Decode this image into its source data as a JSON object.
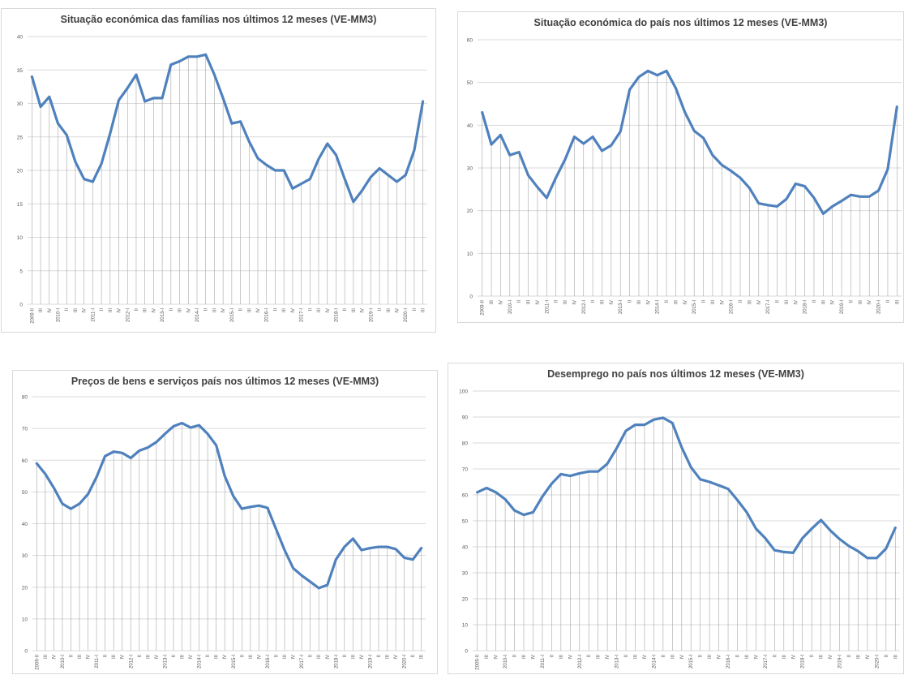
{
  "colors": {
    "line": "#4f81bd",
    "gridline": "#d9d9d9",
    "dropline": "#a6a6a6",
    "text": "#595959"
  },
  "chart_data": [
    {
      "type": "line",
      "title": "Situação económica das famílias nos últimos 12 meses (VE-MM3)",
      "xlabel": "",
      "ylabel": "",
      "ylim": [
        0,
        40
      ],
      "yticks": [
        0,
        5,
        10,
        15,
        20,
        25,
        30,
        35,
        40
      ],
      "grid": true,
      "categories": [
        "2009-II",
        "III",
        "IV",
        "2010-I",
        "II",
        "III",
        "IV",
        "2011-I",
        "II",
        "III",
        "IV",
        "2012-I",
        "II",
        "III",
        "IV",
        "2013-I",
        "II",
        "III",
        "IV",
        "2014-I",
        "II",
        "III",
        "IV",
        "2015-I",
        "II",
        "III",
        "IV",
        "2016-I",
        "II",
        "III",
        "IV",
        "2017-I",
        "II",
        "III",
        "IV",
        "2018-I",
        "II",
        "III",
        "IV",
        "2019-I",
        "II",
        "III",
        "IV",
        "2020-I",
        "II",
        "III"
      ],
      "values": [
        34,
        29.5,
        31,
        27,
        25.3,
        21.3,
        18.7,
        18.3,
        21,
        25.5,
        30.5,
        32.3,
        34.3,
        30.3,
        30.8,
        30.8,
        35.8,
        36.3,
        37,
        37,
        37.3,
        34.3,
        30.8,
        27,
        27.3,
        24.3,
        21.8,
        20.8,
        20,
        20,
        17.3,
        18,
        18.7,
        21.7,
        24,
        22.3,
        18.7,
        15.3,
        17,
        19,
        20.3,
        19.3,
        18.3,
        19.3,
        23,
        30.3
      ]
    },
    {
      "type": "line",
      "title": "Situação económica do país nos últimos 12 meses (VE-MM3)",
      "xlabel": "",
      "ylabel": "",
      "ylim": [
        0,
        60
      ],
      "yticks": [
        0,
        10,
        20,
        30,
        40,
        50,
        60
      ],
      "grid": true,
      "categories": [
        "2009-II",
        "III",
        "IV",
        "2010-I",
        "II",
        "III",
        "IV",
        "2011-I",
        "II",
        "III",
        "IV",
        "2012-I",
        "II",
        "III",
        "IV",
        "2013-I",
        "II",
        "III",
        "IV",
        "2014-I",
        "II",
        "III",
        "IV",
        "2015-I",
        "II",
        "III",
        "IV",
        "2016-I",
        "II",
        "III",
        "IV",
        "2017-I",
        "II",
        "III",
        "IV",
        "2018-I",
        "II",
        "III",
        "IV",
        "2019-I",
        "II",
        "III",
        "IV",
        "2020-I",
        "II",
        "III"
      ],
      "values": [
        43,
        35.5,
        37.7,
        33,
        33.7,
        28.3,
        25.5,
        23,
        27.7,
        32,
        37.3,
        35.7,
        37.3,
        34,
        35.3,
        38.5,
        48.3,
        51.3,
        52.7,
        51.7,
        52.7,
        48.7,
        43,
        38.7,
        37,
        33,
        30.7,
        29.3,
        27.7,
        25.3,
        21.7,
        21.3,
        21,
        22.7,
        26.3,
        25.7,
        23,
        19.3,
        21,
        22.3,
        23.7,
        23.3,
        23.3,
        24.7,
        29.7,
        44.3
      ]
    },
    {
      "type": "line",
      "title": "Preços de bens e serviços país nos últimos 12 meses (VE-MM3)",
      "xlabel": "",
      "ylabel": "",
      "ylim": [
        0,
        80
      ],
      "yticks": [
        0,
        10,
        20,
        30,
        40,
        50,
        60,
        70,
        80
      ],
      "grid": true,
      "categories": [
        "2009-II",
        "III",
        "IV",
        "2010-I",
        "II",
        "III",
        "IV",
        "2011-I",
        "II",
        "III",
        "IV",
        "2012-I",
        "II",
        "III",
        "IV",
        "2013-I",
        "II",
        "III",
        "IV",
        "2014-I",
        "II",
        "III",
        "IV",
        "2015-I",
        "II",
        "III",
        "IV",
        "2016-I",
        "II",
        "III",
        "IV",
        "2017-I",
        "II",
        "III",
        "IV",
        "2018-I",
        "II",
        "III",
        "IV",
        "2019-I",
        "II",
        "III",
        "IV",
        "2020-I",
        "II",
        "III"
      ],
      "values": [
        59,
        55.7,
        51.3,
        46.3,
        44.7,
        46.3,
        49.3,
        54.7,
        61.3,
        62.7,
        62.3,
        60.7,
        63,
        64,
        65.7,
        68.3,
        70.7,
        71.7,
        70.3,
        71,
        68.3,
        64.7,
        55,
        48.7,
        44.7,
        45.3,
        45.7,
        45,
        38.3,
        31.7,
        26,
        23.7,
        21.7,
        19.7,
        20.7,
        28.7,
        32.7,
        35.3,
        31.7,
        32.3,
        32.7,
        32.7,
        32,
        29.3,
        28.7,
        32.3
      ]
    },
    {
      "type": "line",
      "title": "Desemprego no país nos últimos 12 meses (VE-MM3)",
      "xlabel": "",
      "ylabel": "",
      "ylim": [
        0,
        100
      ],
      "yticks": [
        0,
        10,
        20,
        30,
        40,
        50,
        60,
        70,
        80,
        90,
        100
      ],
      "grid": true,
      "categories": [
        "2009-II",
        "III",
        "IV",
        "2010-I",
        "II",
        "III",
        "IV",
        "2011-I",
        "II",
        "III",
        "IV",
        "2012-I",
        "II",
        "III",
        "IV",
        "2013-I",
        "II",
        "III",
        "IV",
        "2014-I",
        "II",
        "III",
        "IV",
        "2015-I",
        "II",
        "III",
        "IV",
        "2016-I",
        "II",
        "III",
        "IV",
        "2017-I",
        "II",
        "III",
        "IV",
        "2018-I",
        "II",
        "III",
        "IV",
        "2019-I",
        "II",
        "III",
        "IV",
        "2020-I",
        "II",
        "III"
      ],
      "values": [
        61,
        62.7,
        61,
        58.3,
        54,
        52.3,
        53.3,
        59.3,
        64.3,
        68,
        67.3,
        68.3,
        69,
        69,
        72,
        78,
        84.7,
        87,
        87,
        89,
        89.7,
        87.7,
        78.3,
        70.7,
        66,
        65,
        63.7,
        62.3,
        58,
        53.3,
        47,
        43.3,
        38.7,
        38,
        37.7,
        43.3,
        47,
        50.3,
        46.3,
        43,
        40.3,
        38.3,
        35.7,
        35.7,
        39.3,
        47.3
      ]
    }
  ]
}
